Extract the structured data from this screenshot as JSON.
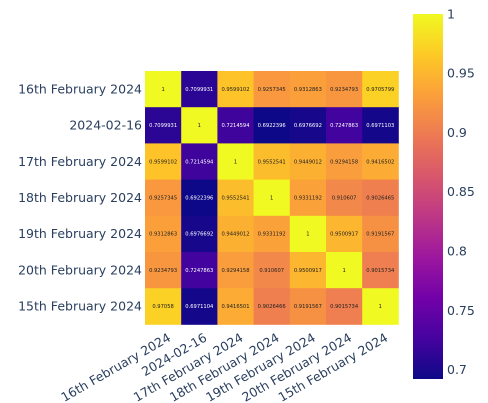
{
  "chart_data": {
    "type": "heatmap",
    "title": "",
    "xlabel": "",
    "ylabel": "",
    "row_labels": [
      "16th February 2024",
      "2024-02-16",
      "17th February 2024",
      "18th February 2024",
      "19th February 2024",
      "20th February 2024",
      "15th February 2024"
    ],
    "col_labels": [
      "16th February 2024",
      "2024-02-16",
      "17th February 2024",
      "18th February 2024",
      "19th February 2024",
      "20th February 2024",
      "15th February 2024"
    ],
    "values": [
      [
        1,
        0.7099931,
        0.9599102,
        0.9257345,
        0.9312863,
        0.9234793,
        0.9705799
      ],
      [
        0.7099931,
        1,
        0.7214594,
        0.6922396,
        0.6976692,
        0.7247863,
        0.6971103
      ],
      [
        0.9599102,
        0.7214594,
        1,
        0.9552541,
        0.9449012,
        0.9294158,
        0.9416502
      ],
      [
        0.9257345,
        0.6922396,
        0.9552541,
        1,
        0.9331192,
        0.910607,
        0.9026465
      ],
      [
        0.9312863,
        0.6976692,
        0.9449012,
        0.9331192,
        1,
        0.9500917,
        0.9191567
      ],
      [
        0.9234793,
        0.7247863,
        0.9294158,
        0.910607,
        0.9500917,
        1,
        0.9015734
      ],
      [
        0.97058,
        0.6971104,
        0.9416501,
        0.9026466,
        0.9191567,
        0.9015734,
        1
      ]
    ],
    "cell_text": [
      [
        "1",
        "0.7099931",
        "0.9599102",
        "0.9257345",
        "0.9312863",
        "0.9234793",
        "0.9705799"
      ],
      [
        "0.7099931",
        "1",
        "0.7214594",
        "0.6922396",
        "0.6976692",
        "0.7247863",
        "0.6971103"
      ],
      [
        "0.9599102",
        "0.7214594",
        "1",
        "0.9552541",
        "0.9449012",
        "0.9294158",
        "0.9416502"
      ],
      [
        "0.9257345",
        "0.6922396",
        "0.9552541",
        "1",
        "0.9331192",
        "0.910607",
        "0.9026465"
      ],
      [
        "0.9312863",
        "0.6976692",
        "0.9449012",
        "0.9331192",
        "1",
        "0.9500917",
        "0.9191567"
      ],
      [
        "0.9234793",
        "0.7247863",
        "0.9294158",
        "0.910607",
        "0.9500917",
        "1",
        "0.9015734"
      ],
      [
        "0.97058",
        "0.6971104",
        "0.9416501",
        "0.9026466",
        "0.9191567",
        "0.9015734",
        "1"
      ]
    ],
    "colorscale": "plasma",
    "zmin": 0.6922396,
    "zmax": 1,
    "colorbar_ticks": [
      {
        "value": 0.7,
        "label": "0.7"
      },
      {
        "value": 0.75,
        "label": "0.75"
      },
      {
        "value": 0.8,
        "label": "0.8"
      },
      {
        "value": 0.85,
        "label": "0.85"
      },
      {
        "value": 0.9,
        "label": "0.9"
      },
      {
        "value": 0.95,
        "label": "0.95"
      },
      {
        "value": 1,
        "label": "1"
      }
    ],
    "grid": false,
    "legend": "colorbar-right"
  }
}
